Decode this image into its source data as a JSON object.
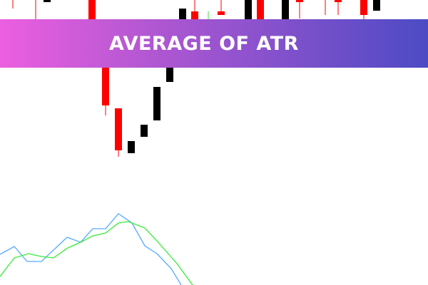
{
  "banner": {
    "title": "AVERAGE OF ATR",
    "gradient_start": "#ec5fe0",
    "gradient_end": "#4c4bc4"
  },
  "chart_data": {
    "type": "candlestick+line",
    "colors": {
      "bearish": "#ff0000",
      "bullish": "#000000",
      "doji": "#33dd33",
      "atr_line": "#55aaff",
      "average_line": "#33ee33"
    },
    "grid": false,
    "lines": [
      {
        "values": [
          43,
          54,
          33,
          33,
          67,
          60,
          79,
          79,
          100,
          87,
          55,
          44,
          23,
          0
        ]
      },
      {
        "values": [
          12,
          38,
          44,
          40,
          38,
          52,
          60,
          69,
          73,
          87,
          89,
          80,
          62,
          30,
          0
        ]
      }
    ]
  }
}
